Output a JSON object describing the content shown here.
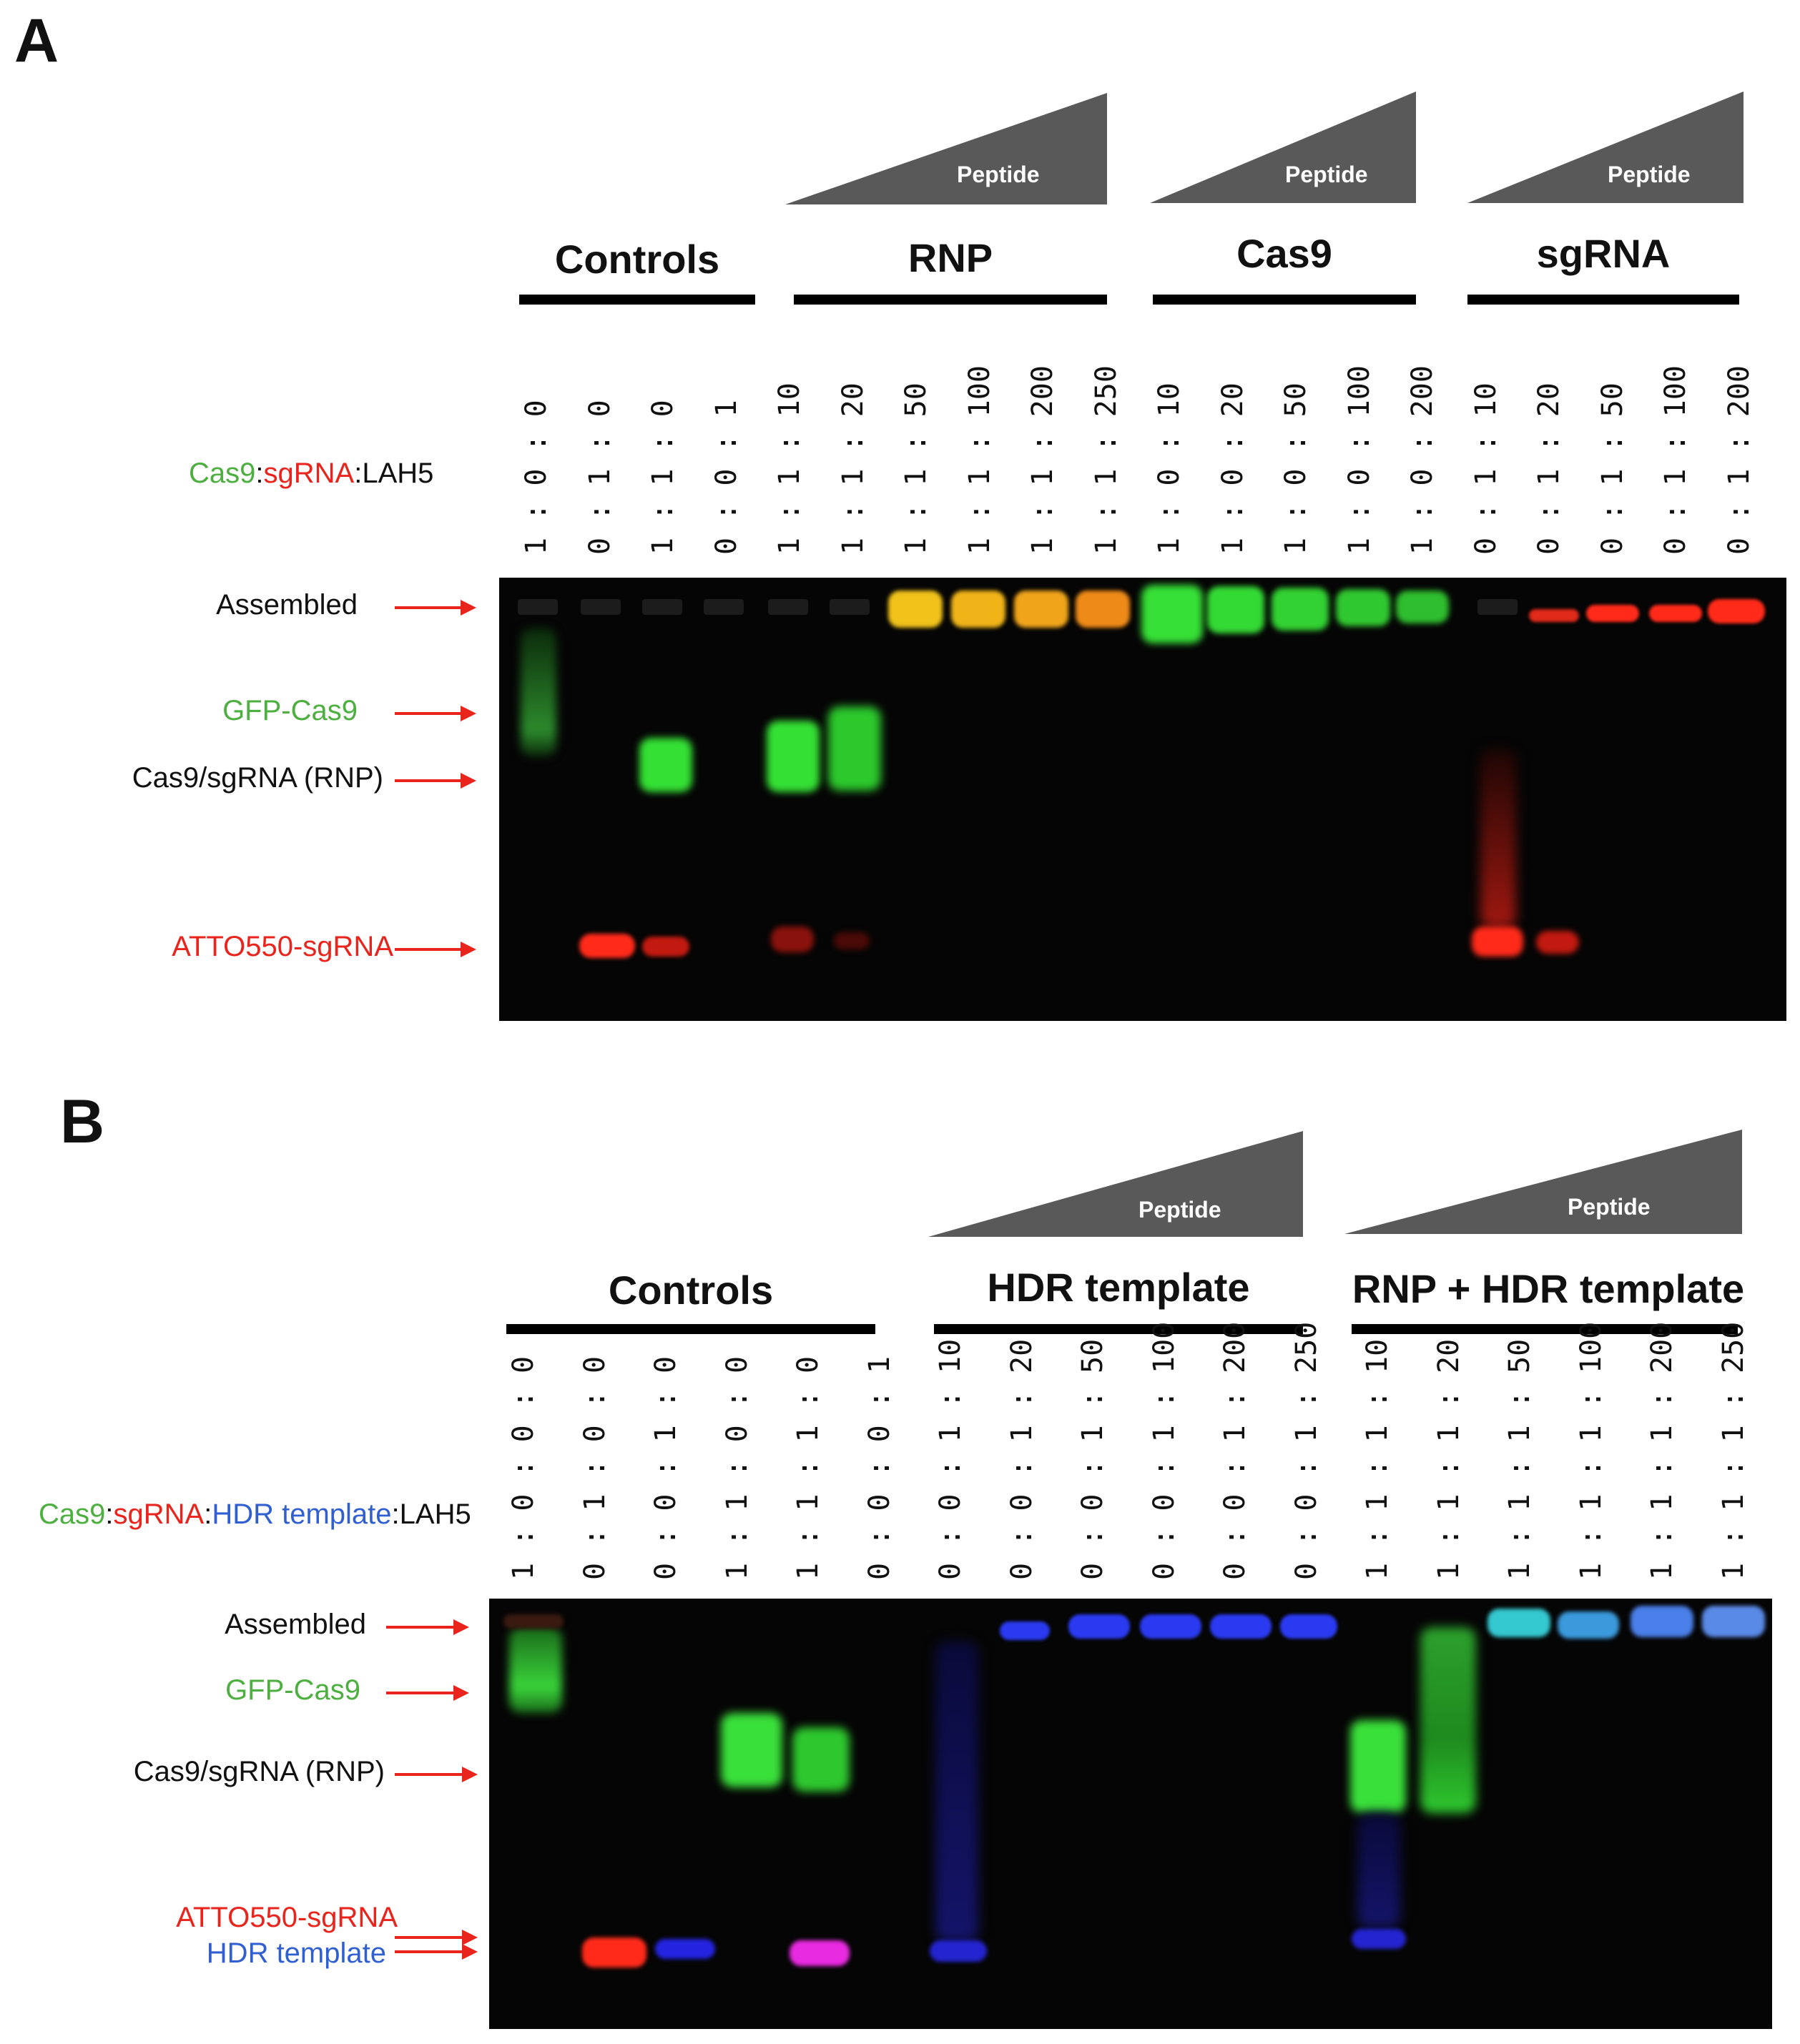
{
  "panelA": {
    "label": "A",
    "peptide_label": "Peptide",
    "groups": [
      "Controls",
      "RNP",
      "Cas9",
      "sgRNA"
    ],
    "axis_label": {
      "cas9": "Cas9",
      "sep1": ":",
      "sgrna": "sgRNA",
      "sep2": ":",
      "lah5": "LAH5"
    },
    "lanes": [
      "1 : 0 : 0",
      "0 : 1 : 0",
      "1 : 1 : 0",
      "0 : 0 : 1",
      "1 : 1 : 10",
      "1 : 1 : 20",
      "1 : 1 : 50",
      "1 : 1 : 100",
      "1 : 1 : 200",
      "1 : 1 : 250",
      "1 : 0 : 10",
      "1 : 0 : 20",
      "1 : 0 : 50",
      "1 : 0 : 100",
      "1 : 0 : 200",
      "0 : 1 : 10",
      "0 : 1 : 20",
      "0 : 1 : 50",
      "0 : 1 : 100",
      "0 : 1 : 200"
    ],
    "rows": [
      "Assembled",
      "GFP-Cas9",
      "Cas9/sgRNA (RNP)",
      "ATTO550-sgRNA"
    ]
  },
  "panelB": {
    "label": "B",
    "peptide_label": "Peptide",
    "groups": [
      "Controls",
      "HDR template",
      "RNP + HDR template"
    ],
    "axis_label": {
      "cas9": "Cas9",
      "sep1": ":",
      "sgrna": "sgRNA",
      "sep2": ":",
      "hdr": "HDR template",
      "sep3": ":",
      "lah5": "LAH5"
    },
    "lanes": [
      "1 : 0 : 0 : 0",
      "0 : 1 : 0 : 0",
      "0 : 0 : 1 : 0",
      "1 : 1 : 0 : 0",
      "1 : 1 : 1 : 0",
      "0 : 0 : 0 : 1",
      "0 : 0 : 1 : 10",
      "0 : 0 : 1 : 20",
      "0 : 0 : 1 : 50",
      "0 : 0 : 1 : 100",
      "0 : 0 : 1 : 200",
      "0 : 0 : 1 : 250",
      "1 : 1 : 1 : 10",
      "1 : 1 : 1 : 20",
      "1 : 1 : 1 : 50",
      "1 : 1 : 1 : 100",
      "1 : 1 : 1 : 200",
      "1 : 1 : 1 : 250"
    ],
    "rows": [
      "Assembled",
      "GFP-Cas9",
      "Cas9/sgRNA (RNP)",
      "ATTO550-sgRNA",
      "HDR template"
    ]
  },
  "colors": {
    "green": "#4caf3f",
    "red": "#e8241c",
    "blue": "#2f5fd0",
    "gel": "#050505"
  }
}
